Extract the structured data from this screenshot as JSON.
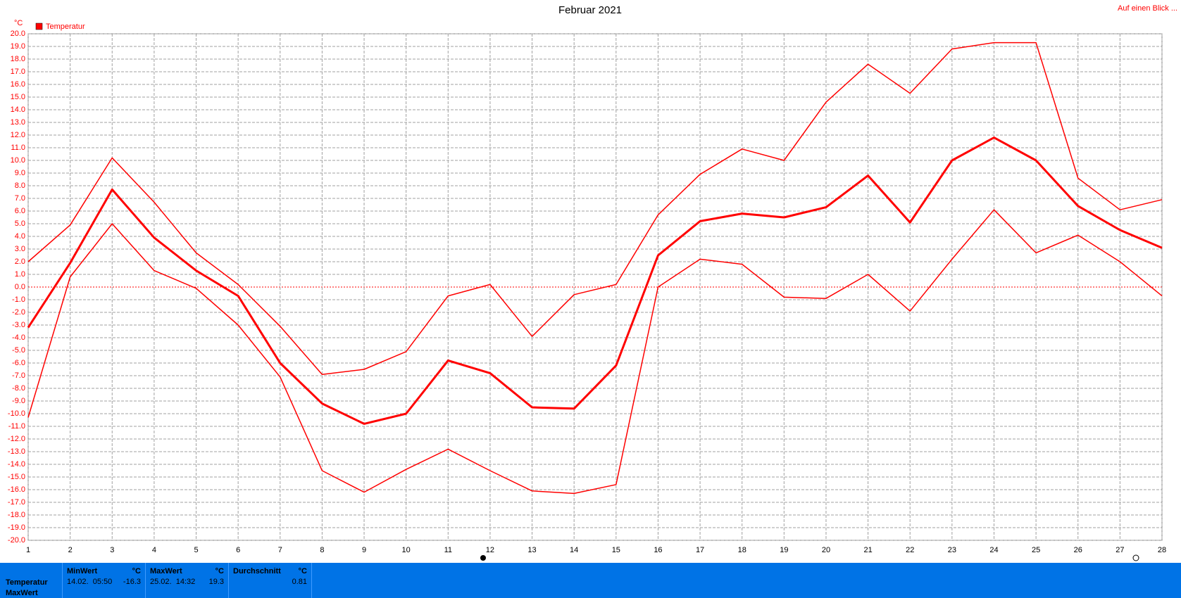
{
  "chart_data": {
    "type": "line",
    "title": "Februar 2021",
    "y_unit": "°C",
    "legend": "Temperatur",
    "link": "Auf einen Blick ...",
    "grid": true,
    "color": "#ff0000",
    "x": [
      1,
      2,
      3,
      4,
      5,
      6,
      7,
      8,
      9,
      10,
      11,
      12,
      13,
      14,
      15,
      16,
      17,
      18,
      19,
      20,
      21,
      22,
      23,
      24,
      25,
      26,
      27,
      28
    ],
    "xlim": [
      1,
      28
    ],
    "xticks": [
      1,
      2,
      3,
      4,
      5,
      6,
      7,
      8,
      9,
      10,
      11,
      12,
      13,
      14,
      15,
      16,
      17,
      18,
      19,
      20,
      21,
      22,
      23,
      24,
      25,
      26,
      27,
      28
    ],
    "ylim": [
      -20,
      20
    ],
    "yticks": [
      {
        "value": 20,
        "label": "20.0"
      },
      {
        "value": 19,
        "label": "19.0"
      },
      {
        "value": 18,
        "label": "18.0"
      },
      {
        "value": 17,
        "label": "17.0"
      },
      {
        "value": 16,
        "label": "16.0"
      },
      {
        "value": 15,
        "label": "15.0"
      },
      {
        "value": 14,
        "label": "14.0"
      },
      {
        "value": 13,
        "label": "13.0"
      },
      {
        "value": 12,
        "label": "12.0"
      },
      {
        "value": 11,
        "label": "11.0"
      },
      {
        "value": 10,
        "label": "10.0"
      },
      {
        "value": 9,
        "label": "9.0"
      },
      {
        "value": 8,
        "label": "8.0"
      },
      {
        "value": 7,
        "label": "7.0"
      },
      {
        "value": 6,
        "label": "6.0"
      },
      {
        "value": 5,
        "label": "5.0"
      },
      {
        "value": 4,
        "label": "4.0"
      },
      {
        "value": 3,
        "label": "3.0"
      },
      {
        "value": 2,
        "label": "2.0"
      },
      {
        "value": 1,
        "label": "1.0"
      },
      {
        "value": 0,
        "label": "0.0"
      },
      {
        "value": -1,
        "label": "-1.0"
      },
      {
        "value": -2,
        "label": "-2.0"
      },
      {
        "value": -3,
        "label": "-3.0"
      },
      {
        "value": -4,
        "label": "-4.0"
      },
      {
        "value": -5,
        "label": "-5.0"
      },
      {
        "value": -6,
        "label": "-6.0"
      },
      {
        "value": -7,
        "label": "-7.0"
      },
      {
        "value": -8,
        "label": "-8.0"
      },
      {
        "value": -9,
        "label": "-9.0"
      },
      {
        "value": -10,
        "label": "-10.0"
      },
      {
        "value": -11,
        "label": "-11.0"
      },
      {
        "value": -12,
        "label": "-12.0"
      },
      {
        "value": -13,
        "label": "-13.0"
      },
      {
        "value": -14,
        "label": "-14.0"
      },
      {
        "value": -15,
        "label": "-15.0"
      },
      {
        "value": -16,
        "label": "-16.0"
      },
      {
        "value": -17,
        "label": "-17.0"
      },
      {
        "value": -18,
        "label": "-18.0"
      },
      {
        "value": -19,
        "label": "-19.0"
      },
      {
        "value": -20,
        "label": "-20.0"
      }
    ],
    "series": [
      {
        "color": "#ff0000",
        "width": 1.5,
        "values": [
          2.0,
          4.9,
          10.2,
          6.7,
          2.7,
          0.2,
          -3.1,
          -6.9,
          -6.5,
          -5.1,
          -0.7,
          0.2,
          -3.9,
          -0.6,
          0.2,
          5.7,
          8.9,
          10.9,
          10.0,
          14.6,
          17.6,
          15.3,
          18.8,
          19.3,
          19.3,
          8.6,
          6.1,
          6.9
        ]
      },
      {
        "color": "#ff0000",
        "width": 3,
        "values": [
          -3.2,
          1.9,
          7.7,
          3.9,
          1.3,
          -0.7,
          -6.0,
          -9.2,
          -10.8,
          -10.0,
          -5.8,
          -6.8,
          -9.5,
          -9.6,
          -6.2,
          2.5,
          5.2,
          5.8,
          5.5,
          6.3,
          8.8,
          5.1,
          10.0,
          11.8,
          10.0,
          6.4,
          4.5,
          3.1
        ]
      },
      {
        "color": "#ff0000",
        "width": 1.5,
        "values": [
          -10.3,
          0.8,
          5.0,
          1.3,
          -0.1,
          -3.0,
          -7.1,
          -14.5,
          -16.2,
          -14.4,
          -12.8,
          -14.5,
          -16.1,
          -16.3,
          -15.6,
          0.0,
          2.2,
          1.8,
          -0.8,
          -0.9,
          1.0,
          -1.9,
          2.2,
          6.1,
          2.7,
          4.1,
          2.0,
          -0.7
        ]
      }
    ]
  },
  "summary": {
    "row_labels": [
      "Temperatur",
      "MaxWert"
    ],
    "columns": [
      {
        "header": "MinWert",
        "unit": "°C",
        "time": "14.02.  05:50",
        "value": -16.3
      },
      {
        "header": "MaxWert",
        "unit": "°C",
        "time": "25.02.  14:32",
        "value": 19.3
      },
      {
        "header": "Durchschnitt",
        "unit": "°C",
        "value": 0.81
      }
    ]
  }
}
